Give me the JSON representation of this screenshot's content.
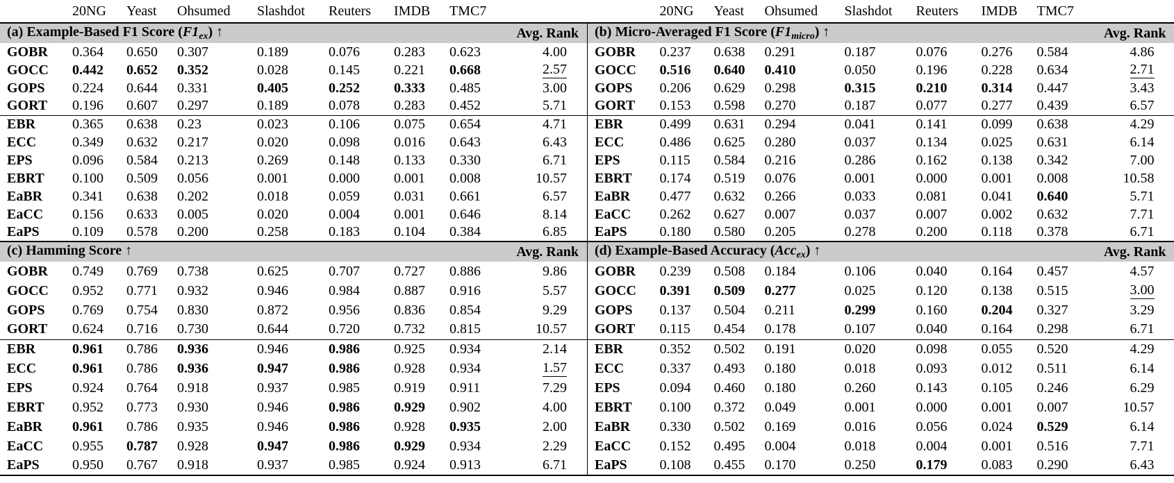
{
  "page": {
    "background": "#ffffff",
    "text_color": "#000000",
    "band_color": "#cbcbcb"
  },
  "columns": {
    "datasets": [
      "20NG",
      "Yeast",
      "Ohsumed",
      "Slashdot",
      "Reuters",
      "IMDB",
      "TMC7"
    ],
    "avg_rank_label": "Avg. Rank"
  },
  "panels": [
    {
      "id": "a",
      "title": {
        "pre": "(a) Example-Based F1 Score (",
        "math": "F1",
        "sub": "ex",
        "post": ") ↑"
      },
      "rows": [
        {
          "method": "GOBR",
          "values": [
            "0.364",
            "0.650",
            "0.307",
            "0.189",
            "0.076",
            "0.283",
            "0.623"
          ],
          "bold": [],
          "avg_rank": "4.00",
          "rank_underlined": false
        },
        {
          "method": "GOCC",
          "values": [
            "0.442",
            "0.652",
            "0.352",
            "0.028",
            "0.145",
            "0.221",
            "0.668"
          ],
          "bold": [
            0,
            1,
            2,
            6
          ],
          "avg_rank": "2.57",
          "rank_underlined": true
        },
        {
          "method": "GOPS",
          "values": [
            "0.224",
            "0.644",
            "0.331",
            "0.405",
            "0.252",
            "0.333",
            "0.485"
          ],
          "bold": [
            3,
            4,
            5
          ],
          "avg_rank": "3.00",
          "rank_underlined": false
        },
        {
          "method": "GORT",
          "values": [
            "0.196",
            "0.607",
            "0.297",
            "0.189",
            "0.078",
            "0.283",
            "0.452"
          ],
          "bold": [],
          "avg_rank": "5.71",
          "rank_underlined": false
        },
        {
          "method": "EBR",
          "values": [
            "0.365",
            "0.638",
            "0.23",
            "0.023",
            "0.106",
            "0.075",
            "0.654"
          ],
          "bold": [],
          "avg_rank": "4.71",
          "rank_underlined": false
        },
        {
          "method": "ECC",
          "values": [
            "0.349",
            "0.632",
            "0.217",
            "0.020",
            "0.098",
            "0.016",
            "0.643"
          ],
          "bold": [],
          "avg_rank": "6.43",
          "rank_underlined": false
        },
        {
          "method": "EPS",
          "values": [
            "0.096",
            "0.584",
            "0.213",
            "0.269",
            "0.148",
            "0.133",
            "0.330"
          ],
          "bold": [],
          "avg_rank": "6.71",
          "rank_underlined": false
        },
        {
          "method": "EBRT",
          "values": [
            "0.100",
            "0.509",
            "0.056",
            "0.001",
            "0.000",
            "0.001",
            "0.008"
          ],
          "bold": [],
          "avg_rank": "10.57",
          "rank_underlined": false
        },
        {
          "method": "EaBR",
          "values": [
            "0.341",
            "0.638",
            "0.202",
            "0.018",
            "0.059",
            "0.031",
            "0.661"
          ],
          "bold": [],
          "avg_rank": "6.57",
          "rank_underlined": false
        },
        {
          "method": "EaCC",
          "values": [
            "0.156",
            "0.633",
            "0.005",
            "0.020",
            "0.004",
            "0.001",
            "0.646"
          ],
          "bold": [],
          "avg_rank": "8.14",
          "rank_underlined": false
        },
        {
          "method": "EaPS",
          "values": [
            "0.109",
            "0.578",
            "0.200",
            "0.258",
            "0.183",
            "0.104",
            "0.384"
          ],
          "bold": [],
          "avg_rank": "6.85",
          "rank_underlined": false
        }
      ]
    },
    {
      "id": "b",
      "title": {
        "pre": "(b) Micro-Averaged F1 Score (",
        "math": "F1",
        "sub": "micro",
        "post": ") ↑"
      },
      "rows": [
        {
          "method": "GOBR",
          "values": [
            "0.237",
            "0.638",
            "0.291",
            "0.187",
            "0.076",
            "0.276",
            "0.584"
          ],
          "bold": [],
          "avg_rank": "4.86",
          "rank_underlined": false
        },
        {
          "method": "GOCC",
          "values": [
            "0.516",
            "0.640",
            "0.410",
            "0.050",
            "0.196",
            "0.228",
            "0.634"
          ],
          "bold": [
            0,
            1,
            2
          ],
          "avg_rank": "2.71",
          "rank_underlined": true
        },
        {
          "method": "GOPS",
          "values": [
            "0.206",
            "0.629",
            "0.298",
            "0.315",
            "0.210",
            "0.314",
            "0.447"
          ],
          "bold": [
            3,
            4,
            5
          ],
          "avg_rank": "3.43",
          "rank_underlined": false
        },
        {
          "method": "GORT",
          "values": [
            "0.153",
            "0.598",
            "0.270",
            "0.187",
            "0.077",
            "0.277",
            "0.439"
          ],
          "bold": [],
          "avg_rank": "6.57",
          "rank_underlined": false
        },
        {
          "method": "EBR",
          "values": [
            "0.499",
            "0.631",
            "0.294",
            "0.041",
            "0.141",
            "0.099",
            "0.638"
          ],
          "bold": [],
          "avg_rank": "4.29",
          "rank_underlined": false
        },
        {
          "method": "ECC",
          "values": [
            "0.486",
            "0.625",
            "0.280",
            "0.037",
            "0.134",
            "0.025",
            "0.631"
          ],
          "bold": [],
          "avg_rank": "6.14",
          "rank_underlined": false
        },
        {
          "method": "EPS",
          "values": [
            "0.115",
            "0.584",
            "0.216",
            "0.286",
            "0.162",
            "0.138",
            "0.342"
          ],
          "bold": [],
          "avg_rank": "7.00",
          "rank_underlined": false
        },
        {
          "method": "EBRT",
          "values": [
            "0.174",
            "0.519",
            "0.076",
            "0.001",
            "0.000",
            "0.001",
            "0.008"
          ],
          "bold": [],
          "avg_rank": "10.58",
          "rank_underlined": false
        },
        {
          "method": "EaBR",
          "values": [
            "0.477",
            "0.632",
            "0.266",
            "0.033",
            "0.081",
            "0.041",
            "0.640"
          ],
          "bold": [
            6
          ],
          "avg_rank": "5.71",
          "rank_underlined": false
        },
        {
          "method": "EaCC",
          "values": [
            "0.262",
            "0.627",
            "0.007",
            "0.037",
            "0.007",
            "0.002",
            "0.632"
          ],
          "bold": [],
          "avg_rank": "7.71",
          "rank_underlined": false
        },
        {
          "method": "EaPS",
          "values": [
            "0.180",
            "0.580",
            "0.205",
            "0.278",
            "0.200",
            "0.118",
            "0.378"
          ],
          "bold": [],
          "avg_rank": "6.71",
          "rank_underlined": false
        }
      ]
    },
    {
      "id": "c",
      "title": {
        "pre": "(c) Hamming Score ",
        "math": "",
        "sub": "",
        "post": "↑"
      },
      "rows": [
        {
          "method": "GOBR",
          "values": [
            "0.749",
            "0.769",
            "0.738",
            "0.625",
            "0.707",
            "0.727",
            "0.886"
          ],
          "bold": [],
          "avg_rank": "9.86",
          "rank_underlined": false
        },
        {
          "method": "GOCC",
          "values": [
            "0.952",
            "0.771",
            "0.932",
            "0.946",
            "0.984",
            "0.887",
            "0.916"
          ],
          "bold": [],
          "avg_rank": "5.57",
          "rank_underlined": false
        },
        {
          "method": "GOPS",
          "values": [
            "0.769",
            "0.754",
            "0.830",
            "0.872",
            "0.956",
            "0.836",
            "0.854"
          ],
          "bold": [],
          "avg_rank": "9.29",
          "rank_underlined": false
        },
        {
          "method": "GORT",
          "values": [
            "0.624",
            "0.716",
            "0.730",
            "0.644",
            "0.720",
            "0.732",
            "0.815"
          ],
          "bold": [],
          "avg_rank": "10.57",
          "rank_underlined": false
        },
        {
          "method": "EBR",
          "values": [
            "0.961",
            "0.786",
            "0.936",
            "0.946",
            "0.986",
            "0.925",
            "0.934"
          ],
          "bold": [
            0,
            2,
            4
          ],
          "avg_rank": "2.14",
          "rank_underlined": false
        },
        {
          "method": "ECC",
          "values": [
            "0.961",
            "0.786",
            "0.936",
            "0.947",
            "0.986",
            "0.928",
            "0.934"
          ],
          "bold": [
            0,
            2,
            3,
            4
          ],
          "avg_rank": "1.57",
          "rank_underlined": true
        },
        {
          "method": "EPS",
          "values": [
            "0.924",
            "0.764",
            "0.918",
            "0.937",
            "0.985",
            "0.919",
            "0.911"
          ],
          "bold": [],
          "avg_rank": "7.29",
          "rank_underlined": false
        },
        {
          "method": "EBRT",
          "values": [
            "0.952",
            "0.773",
            "0.930",
            "0.946",
            "0.986",
            "0.929",
            "0.902"
          ],
          "bold": [
            4,
            5
          ],
          "avg_rank": "4.00",
          "rank_underlined": false
        },
        {
          "method": "EaBR",
          "values": [
            "0.961",
            "0.786",
            "0.935",
            "0.946",
            "0.986",
            "0.928",
            "0.935"
          ],
          "bold": [
            0,
            4,
            6
          ],
          "avg_rank": "2.00",
          "rank_underlined": false
        },
        {
          "method": "EaCC",
          "values": [
            "0.955",
            "0.787",
            "0.928",
            "0.947",
            "0.986",
            "0.929",
            "0.934"
          ],
          "bold": [
            1,
            3,
            4,
            5
          ],
          "avg_rank": "2.29",
          "rank_underlined": false
        },
        {
          "method": "EaPS",
          "values": [
            "0.950",
            "0.767",
            "0.918",
            "0.937",
            "0.985",
            "0.924",
            "0.913"
          ],
          "bold": [],
          "avg_rank": "6.71",
          "rank_underlined": false
        }
      ]
    },
    {
      "id": "d",
      "title": {
        "pre": "(d) Example-Based Accuracy (",
        "math": "Acc",
        "sub": "ex",
        "post": ") ↑"
      },
      "rows": [
        {
          "method": "GOBR",
          "values": [
            "0.239",
            "0.508",
            "0.184",
            "0.106",
            "0.040",
            "0.164",
            "0.457"
          ],
          "bold": [],
          "avg_rank": "4.57",
          "rank_underlined": false
        },
        {
          "method": "GOCC",
          "values": [
            "0.391",
            "0.509",
            "0.277",
            "0.025",
            "0.120",
            "0.138",
            "0.515"
          ],
          "bold": [
            0,
            1,
            2
          ],
          "avg_rank": "3.00",
          "rank_underlined": true
        },
        {
          "method": "GOPS",
          "values": [
            "0.137",
            "0.504",
            "0.211",
            "0.299",
            "0.160",
            "0.204",
            "0.327"
          ],
          "bold": [
            3,
            5
          ],
          "avg_rank": "3.29",
          "rank_underlined": false
        },
        {
          "method": "GORT",
          "values": [
            "0.115",
            "0.454",
            "0.178",
            "0.107",
            "0.040",
            "0.164",
            "0.298"
          ],
          "bold": [],
          "avg_rank": "6.71",
          "rank_underlined": false
        },
        {
          "method": "EBR",
          "values": [
            "0.352",
            "0.502",
            "0.191",
            "0.020",
            "0.098",
            "0.055",
            "0.520"
          ],
          "bold": [],
          "avg_rank": "4.29",
          "rank_underlined": false
        },
        {
          "method": "ECC",
          "values": [
            "0.337",
            "0.493",
            "0.180",
            "0.018",
            "0.093",
            "0.012",
            "0.511"
          ],
          "bold": [],
          "avg_rank": "6.14",
          "rank_underlined": false
        },
        {
          "method": "EPS",
          "values": [
            "0.094",
            "0.460",
            "0.180",
            "0.260",
            "0.143",
            "0.105",
            "0.246"
          ],
          "bold": [],
          "avg_rank": "6.29",
          "rank_underlined": false
        },
        {
          "method": "EBRT",
          "values": [
            "0.100",
            "0.372",
            "0.049",
            "0.001",
            "0.000",
            "0.001",
            "0.007"
          ],
          "bold": [],
          "avg_rank": "10.57",
          "rank_underlined": false
        },
        {
          "method": "EaBR",
          "values": [
            "0.330",
            "0.502",
            "0.169",
            "0.016",
            "0.056",
            "0.024",
            "0.529"
          ],
          "bold": [
            6
          ],
          "avg_rank": "6.14",
          "rank_underlined": false
        },
        {
          "method": "EaCC",
          "values": [
            "0.152",
            "0.495",
            "0.004",
            "0.018",
            "0.004",
            "0.001",
            "0.516"
          ],
          "bold": [],
          "avg_rank": "7.71",
          "rank_underlined": false
        },
        {
          "method": "EaPS",
          "values": [
            "0.108",
            "0.455",
            "0.170",
            "0.250",
            "0.179",
            "0.083",
            "0.290"
          ],
          "bold": [
            4
          ],
          "avg_rank": "6.43",
          "rank_underlined": false
        }
      ]
    }
  ]
}
